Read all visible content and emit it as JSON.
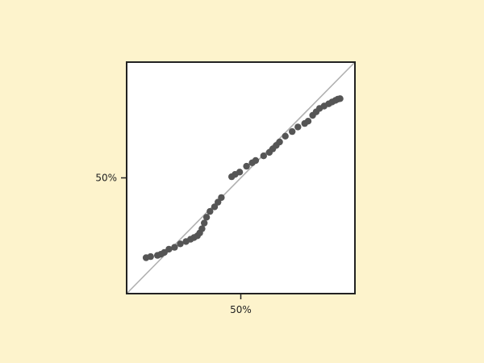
{
  "chart_data": {
    "type": "scatter",
    "title": "",
    "xlabel": "",
    "ylabel": "",
    "xlim": [
      0,
      100
    ],
    "ylim": [
      0,
      100
    ],
    "x_tick_labels": [
      "50%"
    ],
    "x_ticks": [
      50
    ],
    "y_tick_labels": [
      "50%"
    ],
    "y_ticks": [
      50
    ],
    "grid": false,
    "reference_line": {
      "from": [
        0,
        0
      ],
      "to": [
        100,
        100
      ],
      "color": "#b0b0b0"
    },
    "colors": {
      "background": "#fdf3cc",
      "plot_area": "#ffffff",
      "points": "#555555",
      "frame": "#222222"
    },
    "series": [
      {
        "values": [
          [
            8.5,
            15.5
          ],
          [
            10.5,
            16.0
          ],
          [
            13.5,
            16.5
          ],
          [
            15.0,
            17.0
          ],
          [
            16.5,
            17.8
          ],
          [
            18.5,
            19.2
          ],
          [
            21.0,
            20.0
          ],
          [
            23.5,
            21.5
          ],
          [
            26.0,
            22.5
          ],
          [
            28.0,
            23.5
          ],
          [
            29.5,
            24.2
          ],
          [
            31.0,
            25.0
          ],
          [
            32.0,
            26.2
          ],
          [
            33.0,
            28.0
          ],
          [
            34.0,
            30.5
          ],
          [
            35.0,
            33.0
          ],
          [
            36.5,
            35.5
          ],
          [
            38.5,
            37.5
          ],
          [
            40.0,
            39.5
          ],
          [
            41.5,
            41.5
          ],
          [
            46.0,
            50.5
          ],
          [
            47.5,
            51.5
          ],
          [
            49.5,
            52.5
          ],
          [
            52.5,
            55.0
          ],
          [
            55.0,
            56.5
          ],
          [
            56.5,
            57.5
          ],
          [
            60.0,
            59.5
          ],
          [
            62.5,
            61.0
          ],
          [
            64.0,
            62.5
          ],
          [
            65.5,
            64.0
          ],
          [
            67.0,
            65.5
          ],
          [
            69.5,
            68.0
          ],
          [
            72.5,
            70.0
          ],
          [
            75.0,
            72.0
          ],
          [
            78.0,
            73.5
          ],
          [
            79.5,
            74.5
          ],
          [
            81.5,
            77.0
          ],
          [
            83.0,
            78.5
          ],
          [
            84.5,
            80.0
          ],
          [
            86.5,
            81.0
          ],
          [
            88.5,
            82.0
          ],
          [
            90.0,
            82.8
          ],
          [
            91.5,
            83.5
          ],
          [
            92.5,
            84.0
          ],
          [
            93.5,
            84.2
          ]
        ]
      }
    ]
  }
}
